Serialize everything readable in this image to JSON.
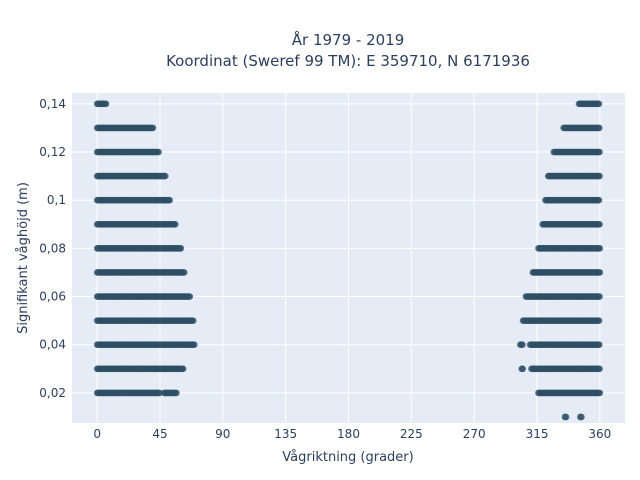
{
  "chart_data": {
    "type": "scatter",
    "title": "År 1979 - 2019",
    "subtitle": "Koordinat (Sweref 99 TM): E 359710, N 6171936",
    "xlabel": "Vågriktning (grader)",
    "ylabel": "Signifikant våghöjd (m)",
    "xlim": [
      -18,
      378
    ],
    "ylim": [
      0.0075,
      0.1445
    ],
    "x_ticks": [
      0,
      45,
      90,
      135,
      180,
      225,
      270,
      315,
      360
    ],
    "x_tick_labels": [
      "0",
      "45",
      "90",
      "135",
      "180",
      "225",
      "270",
      "315",
      "360"
    ],
    "y_ticks": [
      0.02,
      0.04,
      0.06,
      0.08,
      0.1,
      0.12,
      0.14
    ],
    "y_tick_labels": [
      "0,02",
      "0,04",
      "0,06",
      "0,08",
      "0,1",
      "0,12",
      "0,14"
    ],
    "grid": true,
    "background": "#e5ecf6",
    "marker_color": "#2f4f66",
    "point_bands": [
      {
        "y": 0.01,
        "segments": [
          [
            335,
            336
          ],
          [
            346,
            347
          ]
        ]
      },
      {
        "y": 0.02,
        "segments": [
          [
            0,
            45
          ],
          [
            48,
            57
          ],
          [
            316,
            360
          ]
        ]
      },
      {
        "y": 0.03,
        "segments": [
          [
            0,
            62
          ],
          [
            304,
            305
          ],
          [
            311,
            360
          ]
        ]
      },
      {
        "y": 0.04,
        "segments": [
          [
            0,
            70
          ],
          [
            303,
            305
          ],
          [
            310,
            360
          ]
        ]
      },
      {
        "y": 0.05,
        "segments": [
          [
            0,
            69
          ],
          [
            305,
            360
          ]
        ]
      },
      {
        "y": 0.06,
        "segments": [
          [
            0,
            67
          ],
          [
            307,
            360
          ]
        ]
      },
      {
        "y": 0.07,
        "segments": [
          [
            0,
            63
          ],
          [
            312,
            360
          ]
        ]
      },
      {
        "y": 0.08,
        "segments": [
          [
            0,
            60
          ],
          [
            316,
            360
          ]
        ]
      },
      {
        "y": 0.09,
        "segments": [
          [
            0,
            56
          ],
          [
            319,
            360
          ]
        ]
      },
      {
        "y": 0.1,
        "segments": [
          [
            0,
            52
          ],
          [
            321,
            360
          ]
        ]
      },
      {
        "y": 0.11,
        "segments": [
          [
            0,
            49
          ],
          [
            323,
            360
          ]
        ]
      },
      {
        "y": 0.12,
        "segments": [
          [
            0,
            44
          ],
          [
            327,
            360
          ]
        ]
      },
      {
        "y": 0.13,
        "segments": [
          [
            0,
            40
          ],
          [
            334,
            360
          ]
        ]
      },
      {
        "y": 0.14,
        "segments": [
          [
            0,
            7
          ],
          [
            345,
            360
          ]
        ]
      }
    ]
  }
}
